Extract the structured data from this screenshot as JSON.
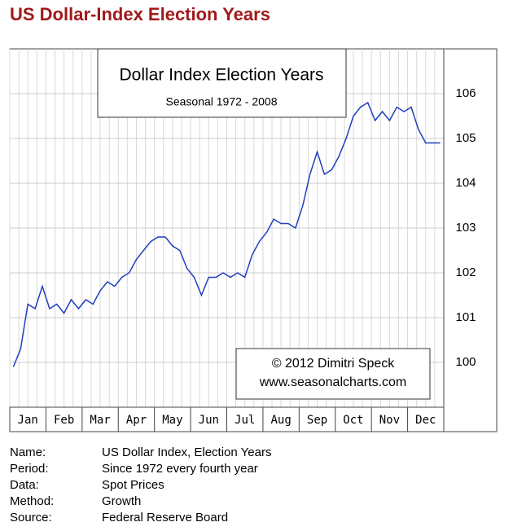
{
  "page_title": "US Dollar-Index Election Years",
  "chart_data": {
    "type": "line",
    "title": "Dollar Index Election Years",
    "subtitle": "Seasonal 1972 - 2008",
    "annotations": [
      "© 2012  Dimitri Speck",
      "www.seasonalcharts.com"
    ],
    "categories": [
      "Jan",
      "Feb",
      "Mar",
      "Apr",
      "May",
      "Jun",
      "Jul",
      "Aug",
      "Sep",
      "Oct",
      "Nov",
      "Dec"
    ],
    "values": [
      [
        99.9,
        100.3,
        101.3,
        101.2,
        101.7
      ],
      [
        101.2,
        101.3,
        101.1,
        101.4,
        101.2
      ],
      [
        101.4,
        101.3,
        101.6,
        101.8,
        101.7
      ],
      [
        101.9,
        102.0,
        102.3,
        102.5,
        102.7
      ],
      [
        102.8,
        102.8,
        102.6,
        102.5,
        102.1
      ],
      [
        101.9,
        101.5,
        101.9,
        101.9,
        102.0
      ],
      [
        101.9,
        102.0,
        101.9,
        102.4,
        102.7
      ],
      [
        102.9,
        103.2,
        103.1,
        103.1,
        103.0
      ],
      [
        103.5,
        104.2,
        104.7,
        104.2,
        104.3
      ],
      [
        104.6,
        105.0,
        105.5,
        105.7,
        105.8
      ],
      [
        105.4,
        105.6,
        105.4,
        105.7,
        105.6
      ],
      [
        105.7,
        105.2,
        104.9,
        104.9,
        104.9
      ]
    ],
    "color": "#1f3fbf",
    "ylim": [
      99,
      107
    ],
    "yticks": [
      100,
      101,
      102,
      103,
      104,
      105,
      106
    ],
    "grid": true
  },
  "info": {
    "rows": [
      [
        "Name:",
        "US Dollar Index, Election Years"
      ],
      [
        "Period:",
        "Since 1972 every fourth year"
      ],
      [
        "Data:",
        "Spot Prices"
      ],
      [
        "Method:",
        "Growth"
      ],
      [
        "Source:",
        "Federal Reserve Board"
      ]
    ]
  }
}
